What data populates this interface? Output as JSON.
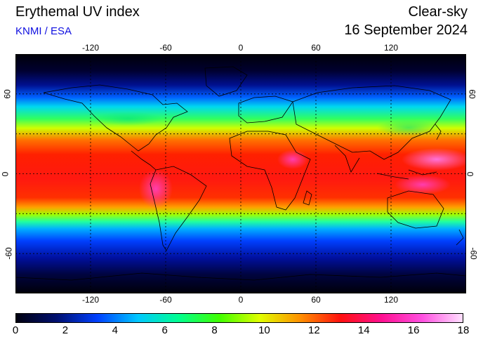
{
  "header": {
    "title": "Erythemal UV index",
    "subtitle": "KNMI / ESA",
    "condition": "Clear-sky",
    "date": "16 September 2024"
  },
  "colors": {
    "subtitle": "#1010e0",
    "frame": "#000000",
    "background": "#ffffff",
    "scale": [
      "#000010",
      "#001070",
      "#0040ff",
      "#00c8ff",
      "#00ff90",
      "#40ff00",
      "#e0ff00",
      "#ff9000",
      "#ff1010",
      "#ff1090",
      "#ff50e0",
      "#ffe0ff"
    ]
  },
  "map": {
    "projection": "equirectangular",
    "gridlines": "dashed",
    "lon_ticks": [
      "-120",
      "-60",
      "0",
      "60",
      "120"
    ],
    "lat_ticks": [
      "60",
      "0",
      "-60"
    ],
    "lon_values": [
      -120,
      -60,
      0,
      60,
      120
    ],
    "lat_values": [
      60,
      0,
      -60
    ]
  },
  "colorbar": {
    "min": 0,
    "max": 18,
    "tick_values": [
      0,
      2,
      4,
      6,
      8,
      10,
      12,
      14,
      16,
      18
    ],
    "tick_labels": [
      "0",
      "2",
      "4",
      "6",
      "8",
      "10",
      "12",
      "14",
      "16",
      "18"
    ]
  }
}
